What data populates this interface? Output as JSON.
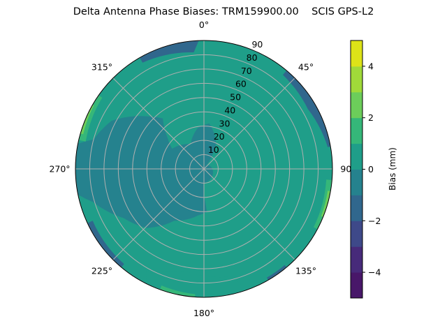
{
  "chart_data": {
    "type": "polar-contour",
    "title": "Delta Antenna Phase Biases: TRM159900.00",
    "subtitle": "SCIS GPS-L2",
    "angular_ticks": [
      "0°",
      "45°",
      "90°",
      "135°",
      "180°",
      "225°",
      "270°",
      "315°"
    ],
    "radial_ticks": [
      "10",
      "20",
      "30",
      "40",
      "50",
      "60",
      "70",
      "80",
      "90"
    ],
    "radial_range": [
      0,
      90
    ],
    "angular_direction": "clockwise",
    "angular_zero": "top",
    "grid": true,
    "colorbar": {
      "label": "Bias (mm)",
      "range": [
        -5,
        5
      ],
      "levels": [
        -5,
        -4,
        -3,
        -2,
        -1,
        0,
        1,
        2,
        3,
        4,
        5
      ],
      "colors": [
        "#481769",
        "#472a7a",
        "#3e4989",
        "#30678d",
        "#25828e",
        "#1f9e89",
        "#35b779",
        "#6ccd5a",
        "#a0da39",
        "#dde318"
      ],
      "ticks": [
        "4",
        "2",
        "0",
        "−2",
        "−4"
      ],
      "tick_values": [
        4,
        2,
        0,
        -2,
        -4
      ]
    },
    "background_level": -1,
    "regions": [
      {
        "level": 0,
        "points": [
          [
            5,
            90
          ],
          [
            14,
            82
          ],
          [
            28,
            78
          ],
          [
            43,
            70
          ],
          [
            54,
            66
          ],
          [
            62,
            58
          ],
          [
            72,
            64
          ],
          [
            66,
            84
          ],
          [
            50,
            84
          ],
          [
            35,
            88
          ],
          [
            20,
            91
          ],
          [
            5,
            91
          ]
        ]
      },
      {
        "level": 0,
        "points": [
          [
            35,
            40
          ],
          [
            50,
            52
          ],
          [
            64,
            56
          ],
          [
            73,
            72
          ],
          [
            79,
            88
          ],
          [
            90,
            91
          ],
          [
            112,
            91
          ],
          [
            121,
            88
          ],
          [
            135,
            86
          ],
          [
            143,
            78
          ],
          [
            139,
            70
          ],
          [
            125,
            64
          ],
          [
            130,
            54
          ],
          [
            106,
            43
          ],
          [
            85,
            30
          ],
          [
            65,
            26
          ],
          [
            49,
            26
          ]
        ]
      },
      {
        "level": 0,
        "points": [
          [
            281,
            91
          ],
          [
            285,
            80
          ],
          [
            297.5,
            73
          ],
          [
            312.6,
            54.5
          ],
          [
            320.8,
            45.6
          ],
          [
            311,
            34
          ],
          [
            302.4,
            26.4
          ],
          [
            332,
            19.7
          ],
          [
            351.3,
            29
          ],
          [
            366.7,
            32
          ],
          [
            386,
            19.4
          ],
          [
            397,
            3.5
          ],
          [
            542,
            10
          ],
          [
            536,
            30
          ],
          [
            547.6,
            33
          ],
          [
            569.7,
            41.8
          ],
          [
            584,
            57.6
          ],
          [
            598.5,
            66
          ],
          [
            613.3,
            81
          ],
          [
            619,
            91
          ]
        ]
      },
      {
        "level": -1,
        "points": [
          [
            253.8,
            36.8
          ],
          [
            245,
            28
          ],
          [
            221.8,
            33.4
          ],
          [
            227.4,
            39
          ],
          [
            241.5,
            42
          ]
        ]
      },
      {
        "level": 0,
        "points": [
          [
            210.3,
            80
          ],
          [
            189.9,
            73
          ],
          [
            165,
            78
          ],
          [
            162,
            86
          ],
          [
            163,
            91
          ],
          [
            205,
            91
          ],
          [
            207.6,
            87
          ]
        ]
      },
      {
        "level": 1,
        "points": [
          [
            283,
            85
          ],
          [
            305,
            87
          ],
          [
            305,
            91
          ],
          [
            283,
            91
          ]
        ]
      },
      {
        "level": 2,
        "points": [
          [
            286,
            88
          ],
          [
            300,
            89
          ],
          [
            300,
            91
          ],
          [
            286,
            91
          ]
        ]
      },
      {
        "level": 1,
        "points": [
          [
            95,
            86
          ],
          [
            118,
            87
          ],
          [
            118,
            91
          ],
          [
            95,
            91
          ]
        ]
      },
      {
        "level": 2,
        "points": [
          [
            100,
            88
          ],
          [
            112,
            88.5
          ],
          [
            112,
            91
          ],
          [
            100,
            91
          ]
        ]
      },
      {
        "level": 1,
        "points": [
          [
            184,
            88
          ],
          [
            200,
            87
          ],
          [
            200,
            91
          ],
          [
            184,
            91
          ]
        ]
      },
      {
        "level": -2,
        "points": [
          [
            330,
            86
          ],
          [
            355,
            82
          ],
          [
            358,
            91
          ],
          [
            330,
            91
          ]
        ]
      },
      {
        "level": -2,
        "points": [
          [
            40,
            86
          ],
          [
            60,
            84
          ],
          [
            80,
            88
          ],
          [
            80,
            91
          ],
          [
            40,
            91
          ]
        ]
      },
      {
        "level": -2,
        "points": [
          [
            220,
            87
          ],
          [
            245,
            86
          ],
          [
            245,
            91
          ],
          [
            220,
            91
          ]
        ]
      },
      {
        "level": -2,
        "points": [
          [
            140,
            88
          ],
          [
            150,
            88
          ],
          [
            150,
            91
          ],
          [
            140,
            91
          ]
        ]
      }
    ]
  }
}
